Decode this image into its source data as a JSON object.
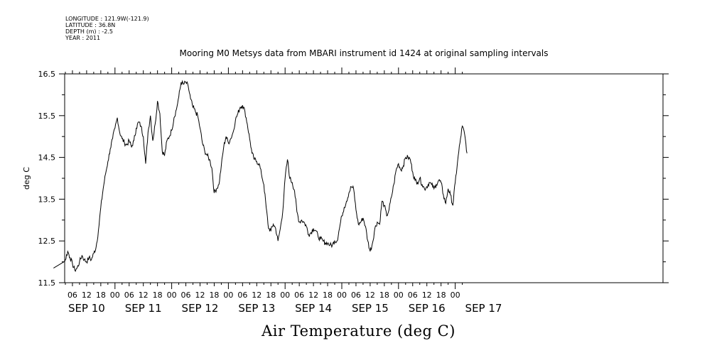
{
  "meta": {
    "longitude": "LONGITUDE : 121.9W(-121.9)",
    "latitude": "LATITUDE : 36.8N",
    "depth": "DEPTH (m) : -2.5",
    "year": "YEAR : 2011"
  },
  "chart_data": {
    "type": "line",
    "title": "Mooring M0 Metsys data from MBARI instrument id 1424 at original sampling intervals",
    "xlabel": "Air Temperature (deg C)",
    "ylabel": "deg C",
    "ylim": [
      11.5,
      16.5
    ],
    "yticks": [
      "11.5",
      "12.5",
      "13.5",
      "14.5",
      "15.5",
      "16.5"
    ],
    "x_hour_ticks": [
      "06",
      "12",
      "18",
      "00",
      "06",
      "12",
      "18",
      "00",
      "06",
      "12",
      "18",
      "00",
      "06",
      "12",
      "18",
      "00",
      "06",
      "12",
      "18",
      "00",
      "06",
      "12",
      "18",
      "00",
      "06",
      "12",
      "18",
      "00"
    ],
    "x_day_labels": [
      "SEP 10",
      "SEP 11",
      "SEP 12",
      "SEP 13",
      "SEP 14",
      "SEP 15",
      "SEP 16",
      "SEP 17"
    ],
    "x_unit": "hours from SEP 10 00:00 (2011)",
    "xlim": [
      -2,
      170
    ],
    "grid": false,
    "series": [
      {
        "color": "#000000",
        "points": [
          [
            -2,
            11.85
          ],
          [
            -1,
            11.7
          ],
          [
            0,
            11.6
          ],
          [
            1,
            11.7
          ],
          [
            2,
            11.9
          ],
          [
            3,
            12.05
          ],
          [
            4,
            12.25
          ],
          [
            5,
            12.1
          ],
          [
            6,
            11.95
          ],
          [
            7,
            11.8
          ],
          [
            8,
            11.85
          ],
          [
            9,
            12.0
          ],
          [
            10,
            12.15
          ],
          [
            11,
            12.05
          ],
          [
            12,
            12.0
          ],
          [
            13,
            12.1
          ],
          [
            14,
            12.05
          ],
          [
            15,
            12.2
          ],
          [
            16,
            12.35
          ],
          [
            17,
            12.75
          ],
          [
            18,
            13.3
          ],
          [
            19,
            13.75
          ],
          [
            20,
            14.1
          ],
          [
            21,
            14.4
          ],
          [
            22,
            14.7
          ],
          [
            23,
            14.95
          ],
          [
            24,
            15.2
          ],
          [
            25,
            15.45
          ],
          [
            26,
            15.1
          ],
          [
            27,
            14.95
          ],
          [
            28,
            14.85
          ],
          [
            29,
            14.8
          ],
          [
            30,
            14.9
          ],
          [
            31,
            14.75
          ],
          [
            32,
            14.9
          ],
          [
            33,
            15.2
          ],
          [
            34,
            15.35
          ],
          [
            35,
            15.25
          ],
          [
            36,
            15.0
          ],
          [
            37,
            14.35
          ],
          [
            38,
            15.1
          ],
          [
            39,
            15.5
          ],
          [
            40,
            14.9
          ],
          [
            41,
            15.3
          ],
          [
            42,
            15.85
          ],
          [
            43,
            15.55
          ],
          [
            44,
            14.65
          ],
          [
            45,
            14.55
          ],
          [
            46,
            14.9
          ],
          [
            47,
            15.0
          ],
          [
            48,
            15.15
          ],
          [
            49,
            15.45
          ],
          [
            50,
            15.65
          ],
          [
            51,
            15.95
          ],
          [
            52,
            16.3
          ],
          [
            53,
            16.25
          ],
          [
            54,
            16.3
          ],
          [
            55,
            16.2
          ],
          [
            56,
            15.9
          ],
          [
            57,
            15.7
          ],
          [
            58,
            15.6
          ],
          [
            59,
            15.5
          ],
          [
            60,
            15.2
          ],
          [
            61,
            14.85
          ],
          [
            62,
            14.65
          ],
          [
            63,
            14.55
          ],
          [
            64,
            14.45
          ],
          [
            65,
            14.25
          ],
          [
            66,
            13.65
          ],
          [
            67,
            13.75
          ],
          [
            68,
            13.85
          ],
          [
            69,
            14.3
          ],
          [
            70,
            14.75
          ],
          [
            71,
            15.0
          ],
          [
            72,
            14.85
          ],
          [
            73,
            14.95
          ],
          [
            74,
            15.1
          ],
          [
            75,
            15.4
          ],
          [
            76,
            15.55
          ],
          [
            77,
            15.7
          ],
          [
            78,
            15.75
          ],
          [
            79,
            15.6
          ],
          [
            80,
            15.3
          ],
          [
            81,
            14.95
          ],
          [
            82,
            14.6
          ],
          [
            83,
            14.45
          ],
          [
            84,
            14.4
          ],
          [
            85,
            14.35
          ],
          [
            86,
            14.1
          ],
          [
            87,
            13.85
          ],
          [
            88,
            13.3
          ],
          [
            89,
            12.8
          ],
          [
            90,
            12.75
          ],
          [
            91,
            12.9
          ],
          [
            92,
            12.8
          ],
          [
            93,
            12.5
          ],
          [
            94,
            12.8
          ],
          [
            95,
            13.2
          ],
          [
            96,
            14.0
          ],
          [
            97,
            14.45
          ],
          [
            98,
            14.0
          ],
          [
            99,
            13.9
          ],
          [
            100,
            13.7
          ],
          [
            101,
            13.2
          ],
          [
            102,
            12.95
          ],
          [
            103,
            13.0
          ],
          [
            104,
            12.95
          ],
          [
            105,
            12.85
          ],
          [
            106,
            12.65
          ],
          [
            107,
            12.7
          ],
          [
            108,
            12.8
          ],
          [
            109,
            12.75
          ],
          [
            110,
            12.6
          ],
          [
            111,
            12.55
          ],
          [
            112,
            12.5
          ],
          [
            113,
            12.45
          ],
          [
            114,
            12.45
          ],
          [
            115,
            12.4
          ],
          [
            116,
            12.4
          ],
          [
            117,
            12.5
          ],
          [
            118,
            12.5
          ],
          [
            119,
            12.8
          ],
          [
            120,
            13.1
          ],
          [
            121,
            13.3
          ],
          [
            122,
            13.45
          ],
          [
            123,
            13.65
          ],
          [
            124,
            13.8
          ],
          [
            125,
            13.75
          ],
          [
            126,
            13.25
          ],
          [
            127,
            12.9
          ],
          [
            128,
            12.95
          ],
          [
            129,
            13.05
          ],
          [
            130,
            12.85
          ],
          [
            131,
            12.5
          ],
          [
            132,
            12.25
          ],
          [
            133,
            12.45
          ],
          [
            134,
            12.8
          ],
          [
            135,
            12.95
          ],
          [
            136,
            12.9
          ],
          [
            137,
            13.45
          ],
          [
            138,
            13.35
          ],
          [
            139,
            13.1
          ],
          [
            140,
            13.25
          ],
          [
            141,
            13.55
          ],
          [
            142,
            13.85
          ],
          [
            143,
            14.2
          ],
          [
            144,
            14.35
          ],
          [
            145,
            14.2
          ],
          [
            146,
            14.3
          ],
          [
            147,
            14.5
          ],
          [
            148,
            14.5
          ],
          [
            149,
            14.45
          ],
          [
            150,
            14.15
          ],
          [
            151,
            13.95
          ],
          [
            152,
            13.9
          ],
          [
            153,
            14.0
          ],
          [
            154,
            13.85
          ],
          [
            155,
            13.75
          ],
          [
            156,
            13.8
          ],
          [
            157,
            13.9
          ],
          [
            158,
            13.85
          ],
          [
            159,
            13.75
          ],
          [
            160,
            13.85
          ],
          [
            161,
            13.95
          ],
          [
            162,
            13.9
          ],
          [
            163,
            13.6
          ],
          [
            164,
            13.4
          ],
          [
            165,
            13.75
          ],
          [
            166,
            13.6
          ],
          [
            167,
            13.35
          ],
          [
            168,
            13.9
          ],
          [
            169,
            14.4
          ],
          [
            170,
            14.85
          ],
          [
            171,
            15.25
          ],
          [
            172,
            15.05
          ],
          [
            173,
            14.6
          ]
        ]
      }
    ]
  }
}
